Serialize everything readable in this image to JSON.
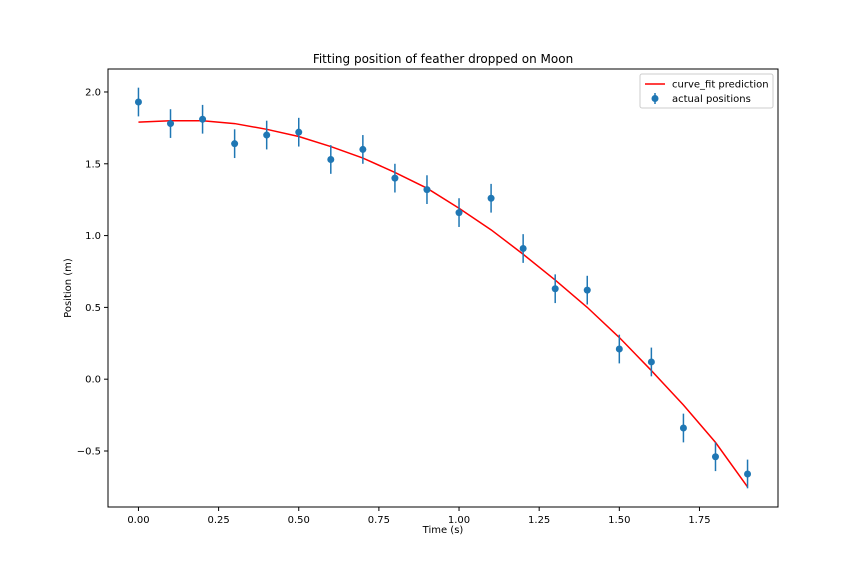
{
  "chart_data": {
    "type": "scatter",
    "title": "Fitting position of feather dropped on Moon",
    "xlabel": "Time (s)",
    "ylabel": "Position (m)",
    "xlim": [
      -0.095,
      1.995
    ],
    "ylim": [
      -0.89,
      2.16
    ],
    "xticks": [
      0.0,
      0.25,
      0.5,
      0.75,
      1.0,
      1.25,
      1.5,
      1.75
    ],
    "xtick_labels": [
      "0.00",
      "0.25",
      "0.50",
      "0.75",
      "1.00",
      "1.25",
      "1.50",
      "1.75"
    ],
    "yticks": [
      -0.5,
      0.0,
      0.5,
      1.0,
      1.5,
      2.0
    ],
    "ytick_labels": [
      "−0.5",
      "0.0",
      "0.5",
      "1.0",
      "1.5",
      "2.0"
    ],
    "grid": false,
    "legend_position": "top-right",
    "series": [
      {
        "name": "curve_fit prediction",
        "kind": "line",
        "color": "#ff0000",
        "x": [
          0.0,
          0.1,
          0.2,
          0.3,
          0.4,
          0.5,
          0.6,
          0.7,
          0.8,
          0.9,
          1.0,
          1.1,
          1.2,
          1.3,
          1.4,
          1.5,
          1.6,
          1.7,
          1.8,
          1.9
        ],
        "y": [
          1.79,
          1.8,
          1.8,
          1.78,
          1.74,
          1.69,
          1.62,
          1.54,
          1.44,
          1.33,
          1.19,
          1.04,
          0.87,
          0.69,
          0.5,
          0.29,
          0.06,
          -0.18,
          -0.44,
          -0.75
        ]
      },
      {
        "name": "actual positions",
        "kind": "errorbar",
        "color": "#1f77b4",
        "x": [
          0.0,
          0.1,
          0.2,
          0.3,
          0.4,
          0.5,
          0.6,
          0.7,
          0.8,
          0.9,
          1.0,
          1.1,
          1.2,
          1.3,
          1.4,
          1.5,
          1.6,
          1.7,
          1.8,
          1.9
        ],
        "y": [
          1.93,
          1.78,
          1.81,
          1.64,
          1.7,
          1.72,
          1.53,
          1.6,
          1.4,
          1.32,
          1.16,
          1.26,
          0.91,
          0.63,
          0.62,
          0.21,
          0.12,
          -0.34,
          -0.54,
          -0.66
        ],
        "yerr": 0.1
      }
    ]
  }
}
